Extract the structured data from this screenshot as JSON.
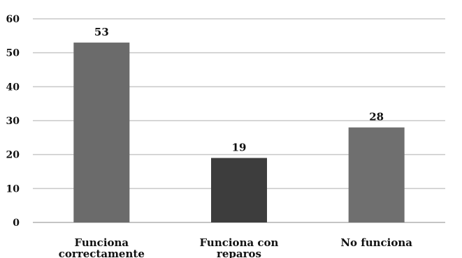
{
  "chart_data": {
    "type": "bar",
    "title": "",
    "xlabel": "",
    "ylabel": "",
    "categories": [
      [
        "Funciona",
        "correctamente"
      ],
      [
        "Funciona con",
        "reparos"
      ],
      [
        "No funciona"
      ]
    ],
    "values": [
      53,
      19,
      28
    ],
    "data_labels": [
      "53",
      "19",
      "28"
    ],
    "bar_colors": [
      "#6b6b6b",
      "#3d3d3d",
      "#6f6f6f"
    ],
    "ylim": [
      0,
      60
    ],
    "yticks": [
      0,
      10,
      20,
      30,
      40,
      50,
      60
    ],
    "grid": true,
    "legend": "none"
  }
}
